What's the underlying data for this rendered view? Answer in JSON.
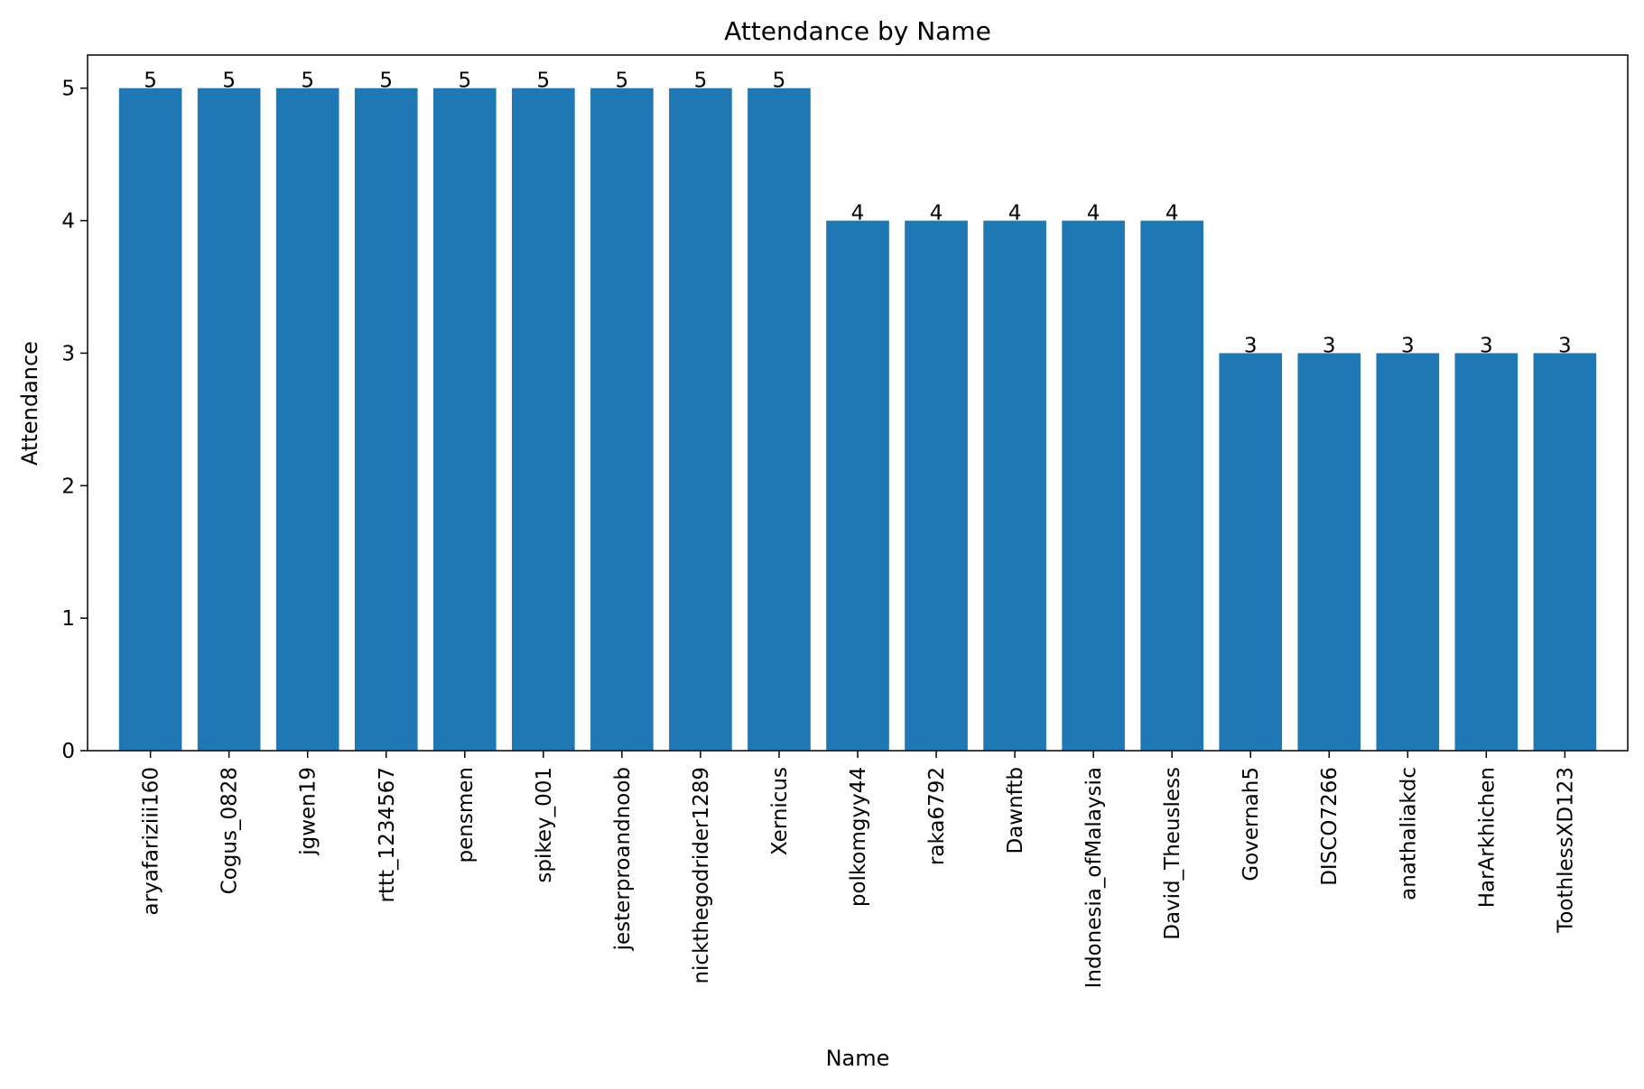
{
  "chart_data": {
    "type": "bar",
    "title": "Attendance by Name",
    "xlabel": "Name",
    "ylabel": "Attendance",
    "ylim": [
      0,
      5.25
    ],
    "yticks": [
      0,
      1,
      2,
      3,
      4,
      5
    ],
    "grid": false,
    "legend": "none",
    "bar_color": "#1f77b4",
    "categories": [
      "aryafariziii160",
      "Cogus_0828",
      "jgwen19",
      "rttt_1234567",
      "pensmen",
      "spikey_001",
      "jesterproandnoob",
      "nickthegodrider1289",
      "Xernicus",
      "polkomgyy44",
      "raka6792",
      "Dawnftb",
      "Indonesia_ofMalaysia",
      "David_Theusless",
      "Governah5",
      "DISCO7266",
      "anathaliakdc",
      "HarArkhichen",
      "ToothlessXD123"
    ],
    "values": [
      5,
      5,
      5,
      5,
      5,
      5,
      5,
      5,
      5,
      4,
      4,
      4,
      4,
      4,
      3,
      3,
      3,
      3,
      3
    ],
    "data_labels": [
      "5",
      "5",
      "5",
      "5",
      "5",
      "5",
      "5",
      "5",
      "5",
      "4",
      "4",
      "4",
      "4",
      "4",
      "3",
      "3",
      "3",
      "3",
      "3"
    ]
  }
}
